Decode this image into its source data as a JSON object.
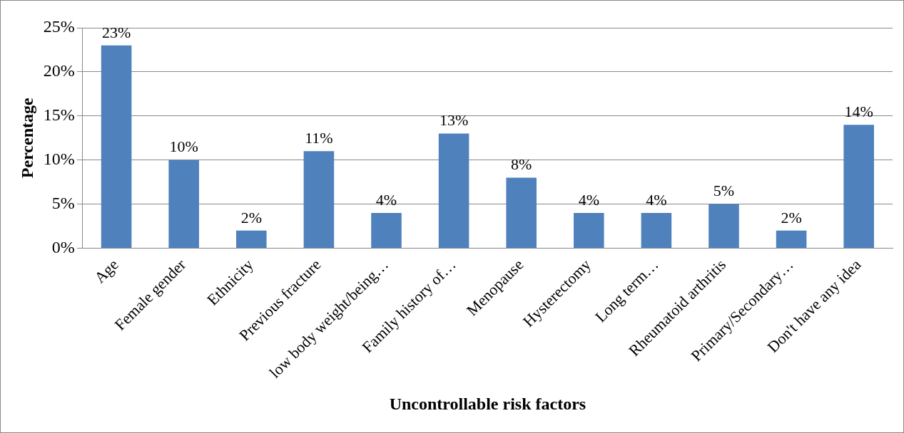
{
  "chart_data": {
    "type": "bar",
    "xlabel": "Uncontrollable risk factors",
    "ylabel": "Percentage",
    "categories": [
      "Age",
      "Female gender",
      "Ethnicity",
      "Previous fracture",
      "low body weight/being…",
      "Family history of…",
      "Menopause",
      "Hysterectomy",
      "Long term…",
      "Rheumatoid arthritis",
      "Primary/Secondary…",
      "Don't have any idea"
    ],
    "values": [
      23,
      10,
      2,
      11,
      4,
      13,
      8,
      4,
      4,
      5,
      2,
      14
    ],
    "value_labels": [
      "23%",
      "10%",
      "2%",
      "11%",
      "4%",
      "13%",
      "8%",
      "4%",
      "4%",
      "5%",
      "2%",
      "14%"
    ],
    "color": "#4f81bd",
    "ylim": [
      0,
      25
    ],
    "yticks": [
      {
        "value": 0,
        "label": "0%"
      },
      {
        "value": 5,
        "label": "5%"
      },
      {
        "value": 10,
        "label": "10%"
      },
      {
        "value": 15,
        "label": "15%"
      },
      {
        "value": 20,
        "label": "20%"
      },
      {
        "value": 25,
        "label": "25%"
      }
    ],
    "grid": "y",
    "legend": false
  }
}
